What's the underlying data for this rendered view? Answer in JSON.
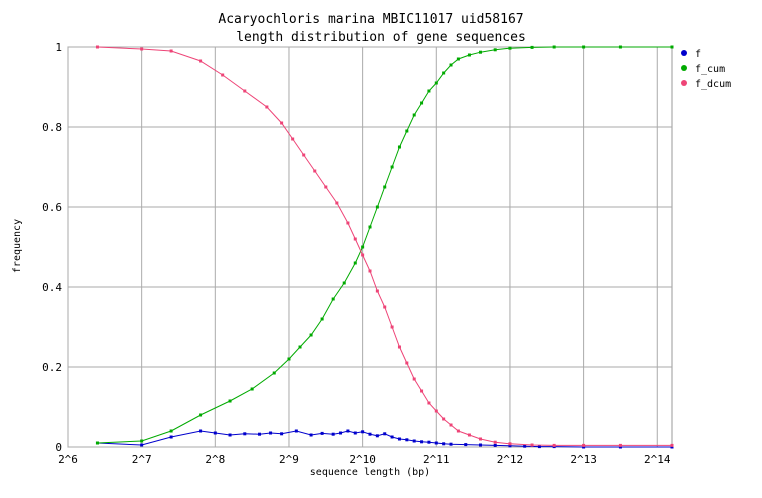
{
  "chart_data": {
    "type": "line",
    "title": "Acaryochloris marina MBIC11017 uid58167",
    "subtitle": "length distribution of gene sequences",
    "xlabel": "sequence length (bp)",
    "ylabel": "frequency",
    "x_scale": "log2",
    "xlim_exponent": [
      6,
      14.2
    ],
    "ylim": [
      0,
      1
    ],
    "grid": true,
    "legend_position": "right",
    "x_ticks": [
      {
        "label": "2^6",
        "exp": 6
      },
      {
        "label": "2^7",
        "exp": 7
      },
      {
        "label": "2^8",
        "exp": 8
      },
      {
        "label": "2^9",
        "exp": 9
      },
      {
        "label": "2^10",
        "exp": 10
      },
      {
        "label": "2^11",
        "exp": 11
      },
      {
        "label": "2^12",
        "exp": 12
      },
      {
        "label": "2^13",
        "exp": 13
      },
      {
        "label": "2^14",
        "exp": 14
      }
    ],
    "y_ticks": [
      {
        "label": "0",
        "value": 0
      },
      {
        "label": "0.2",
        "value": 0.2
      },
      {
        "label": "0.4",
        "value": 0.4
      },
      {
        "label": "0.6",
        "value": 0.6
      },
      {
        "label": "0.8",
        "value": 0.8
      },
      {
        "label": "1",
        "value": 1
      }
    ],
    "series": [
      {
        "name": "f",
        "color": "#0000cc",
        "points": [
          [
            6.4,
            0.01
          ],
          [
            7.0,
            0.005
          ],
          [
            7.4,
            0.025
          ],
          [
            7.8,
            0.04
          ],
          [
            8.0,
            0.035
          ],
          [
            8.2,
            0.03
          ],
          [
            8.4,
            0.033
          ],
          [
            8.6,
            0.032
          ],
          [
            8.75,
            0.035
          ],
          [
            8.9,
            0.033
          ],
          [
            9.1,
            0.04
          ],
          [
            9.3,
            0.03
          ],
          [
            9.45,
            0.034
          ],
          [
            9.6,
            0.032
          ],
          [
            9.7,
            0.035
          ],
          [
            9.8,
            0.04
          ],
          [
            9.9,
            0.035
          ],
          [
            10.0,
            0.038
          ],
          [
            10.1,
            0.032
          ],
          [
            10.2,
            0.028
          ],
          [
            10.3,
            0.033
          ],
          [
            10.4,
            0.025
          ],
          [
            10.5,
            0.02
          ],
          [
            10.6,
            0.018
          ],
          [
            10.7,
            0.015
          ],
          [
            10.8,
            0.013
          ],
          [
            10.9,
            0.012
          ],
          [
            11.0,
            0.01
          ],
          [
            11.1,
            0.008
          ],
          [
            11.2,
            0.007
          ],
          [
            11.4,
            0.006
          ],
          [
            11.6,
            0.005
          ],
          [
            11.8,
            0.004
          ],
          [
            12.0,
            0.003
          ],
          [
            12.2,
            0.002
          ],
          [
            12.4,
            0.001
          ],
          [
            12.6,
            0.001
          ],
          [
            13.0,
            0.0
          ],
          [
            13.5,
            0.0
          ],
          [
            14.2,
            0.0
          ]
        ]
      },
      {
        "name": "f_cum",
        "color": "#00aa00",
        "points": [
          [
            6.4,
            0.01
          ],
          [
            7.0,
            0.015
          ],
          [
            7.4,
            0.04
          ],
          [
            7.8,
            0.08
          ],
          [
            8.2,
            0.115
          ],
          [
            8.5,
            0.145
          ],
          [
            8.8,
            0.185
          ],
          [
            9.0,
            0.22
          ],
          [
            9.15,
            0.25
          ],
          [
            9.3,
            0.28
          ],
          [
            9.45,
            0.32
          ],
          [
            9.6,
            0.37
          ],
          [
            9.75,
            0.41
          ],
          [
            9.9,
            0.46
          ],
          [
            10.0,
            0.5
          ],
          [
            10.1,
            0.55
          ],
          [
            10.2,
            0.6
          ],
          [
            10.3,
            0.65
          ],
          [
            10.4,
            0.7
          ],
          [
            10.5,
            0.75
          ],
          [
            10.6,
            0.79
          ],
          [
            10.7,
            0.83
          ],
          [
            10.8,
            0.86
          ],
          [
            10.9,
            0.89
          ],
          [
            11.0,
            0.91
          ],
          [
            11.1,
            0.935
          ],
          [
            11.2,
            0.955
          ],
          [
            11.3,
            0.97
          ],
          [
            11.45,
            0.98
          ],
          [
            11.6,
            0.987
          ],
          [
            11.8,
            0.993
          ],
          [
            12.0,
            0.997
          ],
          [
            12.3,
            0.999
          ],
          [
            12.6,
            1.0
          ],
          [
            13.0,
            1.0
          ],
          [
            13.5,
            1.0
          ],
          [
            14.2,
            1.0
          ]
        ]
      },
      {
        "name": "f_dcum",
        "color": "#ee4477",
        "points": [
          [
            6.4,
            1.0
          ],
          [
            7.0,
            0.995
          ],
          [
            7.4,
            0.99
          ],
          [
            7.8,
            0.965
          ],
          [
            8.1,
            0.93
          ],
          [
            8.4,
            0.89
          ],
          [
            8.7,
            0.85
          ],
          [
            8.9,
            0.81
          ],
          [
            9.05,
            0.77
          ],
          [
            9.2,
            0.73
          ],
          [
            9.35,
            0.69
          ],
          [
            9.5,
            0.65
          ],
          [
            9.65,
            0.61
          ],
          [
            9.8,
            0.56
          ],
          [
            9.9,
            0.52
          ],
          [
            10.0,
            0.48
          ],
          [
            10.1,
            0.44
          ],
          [
            10.2,
            0.39
          ],
          [
            10.3,
            0.35
          ],
          [
            10.4,
            0.3
          ],
          [
            10.5,
            0.25
          ],
          [
            10.6,
            0.21
          ],
          [
            10.7,
            0.17
          ],
          [
            10.8,
            0.14
          ],
          [
            10.9,
            0.11
          ],
          [
            11.0,
            0.09
          ],
          [
            11.1,
            0.07
          ],
          [
            11.2,
            0.055
          ],
          [
            11.3,
            0.04
          ],
          [
            11.45,
            0.03
          ],
          [
            11.6,
            0.02
          ],
          [
            11.8,
            0.012
          ],
          [
            12.0,
            0.008
          ],
          [
            12.3,
            0.005
          ],
          [
            12.6,
            0.004
          ],
          [
            13.0,
            0.004
          ],
          [
            13.5,
            0.004
          ],
          [
            14.2,
            0.004
          ]
        ]
      }
    ]
  }
}
